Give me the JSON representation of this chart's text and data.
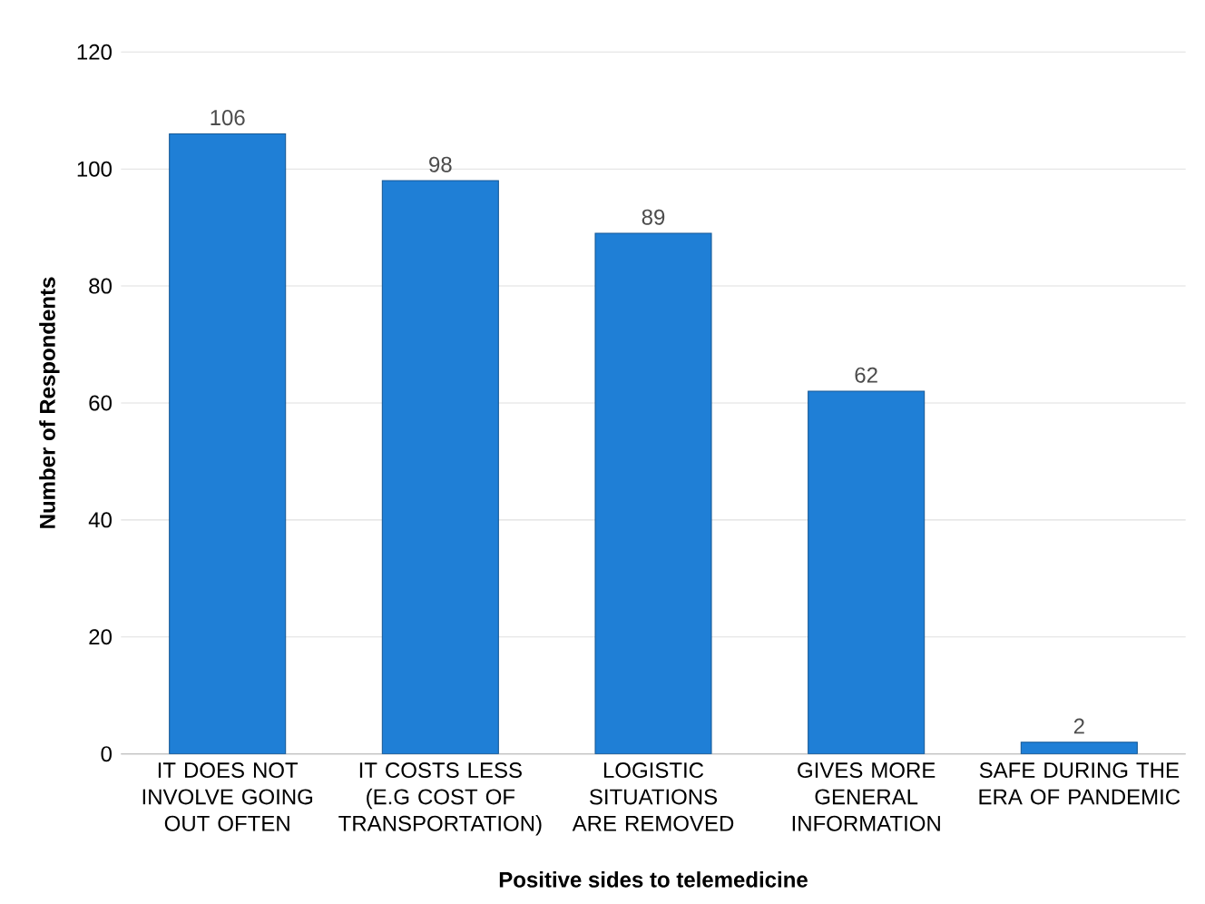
{
  "chart_data": {
    "type": "bar",
    "categories": [
      "IT DOES NOT INVOLVE GOING OUT OFTEN",
      "IT COSTS LESS (E.G COST OF TRANSPORTATION)",
      "LOGISTIC SITUATIONS ARE REMOVED",
      "GIVES MORE GENERAL INFORMATION",
      "SAFE DURING THE ERA OF PANDEMIC"
    ],
    "values": [
      106,
      98,
      89,
      62,
      2
    ],
    "color": "#1f7fd6",
    "xlabel": "Positive sides to telemedicine",
    "ylabel": "Number of Respondents",
    "ylim": [
      0,
      120
    ],
    "yticks": [
      0,
      20,
      40,
      60,
      80,
      100,
      120
    ],
    "grid": "y",
    "data_labels": true
  }
}
